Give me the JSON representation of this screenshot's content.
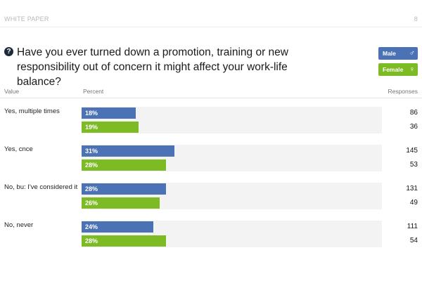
{
  "header": {
    "title": "WHITE PAPER",
    "page_number": "8"
  },
  "question": {
    "icon": "question-circle-icon",
    "text": "Have you ever turned down a promotion, training or new responsibility out of concern it might affect your work-life balance?"
  },
  "columns": {
    "value": "Value",
    "percent": "Percent",
    "responses": "Responses"
  },
  "legend": [
    {
      "label": "Male",
      "symbol": "♂",
      "icon": "male-symbol-icon",
      "color": "#4a72b4"
    },
    {
      "label": "Female",
      "symbol": "♀",
      "icon": "female-symbol-icon",
      "color": "#7dbb25"
    }
  ],
  "chart_data": {
    "type": "bar",
    "orientation": "horizontal",
    "title": "Have you ever turned down a promotion, training or new responsibility out of concern it might affect your work-life balance?",
    "categories": [
      "Yes, multiple times",
      "Yes, once",
      "No, but I've considered it",
      "No, never"
    ],
    "category_display": [
      "Yes, multiple times",
      "Yes, cnce",
      "No, bu: I've considered it",
      "No, never"
    ],
    "series": [
      {
        "name": "Male",
        "color": "#4a72b4",
        "values": [
          18,
          31,
          28,
          24
        ],
        "labels": [
          "18%",
          "31%",
          "28%",
          "24%"
        ],
        "responses": [
          86,
          145,
          131,
          111
        ]
      },
      {
        "name": "Female",
        "color": "#7dbb25",
        "values": [
          19,
          28,
          26,
          28
        ],
        "labels": [
          "19%",
          "28%",
          "26%",
          "28%"
        ],
        "responses": [
          36,
          53,
          49,
          54
        ]
      }
    ],
    "xlim": [
      0,
      100
    ],
    "unit": "%",
    "legend_position": "top-right"
  }
}
